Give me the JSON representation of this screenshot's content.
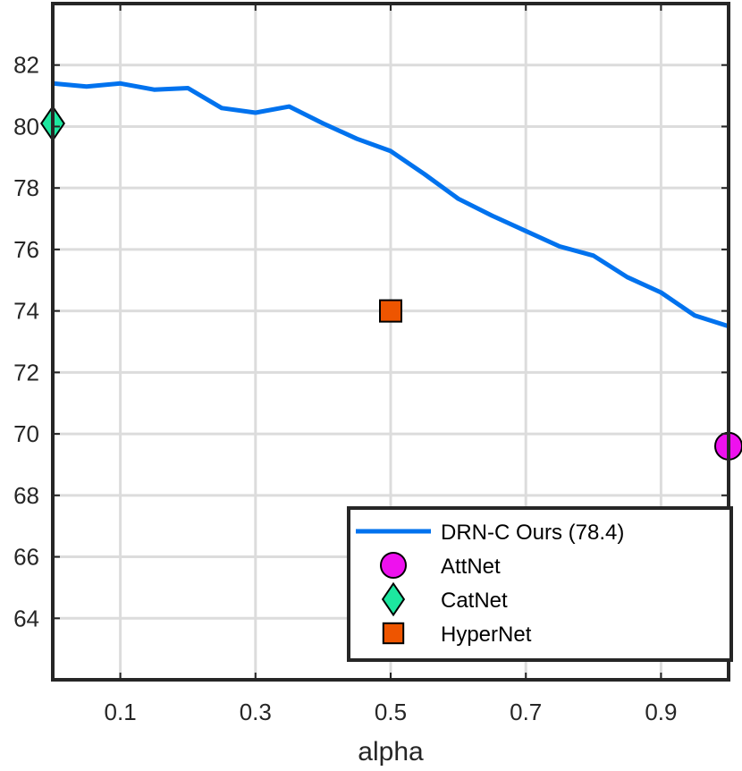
{
  "chart_data": {
    "type": "line",
    "title": "",
    "xlabel": "alpha",
    "ylabel": "",
    "xlim": [
      0,
      1
    ],
    "ylim": [
      62,
      84
    ],
    "xticks": [
      0.1,
      0.3,
      0.5,
      0.7,
      0.9
    ],
    "xtick_labels": [
      "0.1",
      "0.3",
      "0.5",
      "0.7",
      "0.9"
    ],
    "yticks": [
      64,
      66,
      68,
      70,
      72,
      74,
      76,
      78,
      80,
      82
    ],
    "ytick_labels": [
      "64",
      "66",
      "68",
      "70",
      "72",
      "74",
      "76",
      "78",
      "80",
      "82"
    ],
    "grid": true,
    "legend_position": "bottom-right",
    "series": [
      {
        "name": "DRN-C Ours (78.4)",
        "kind": "line",
        "color": "#0072ee",
        "x": [
          0,
          0.05,
          0.1,
          0.15,
          0.2,
          0.25,
          0.3,
          0.35,
          0.4,
          0.45,
          0.5,
          0.55,
          0.6,
          0.65,
          0.7,
          0.75,
          0.8,
          0.85,
          0.9,
          0.95,
          1.0
        ],
        "y": [
          81.4,
          81.3,
          81.4,
          81.2,
          81.25,
          80.6,
          80.45,
          80.65,
          80.1,
          79.6,
          79.2,
          78.45,
          77.65,
          77.1,
          76.6,
          76.1,
          75.8,
          75.1,
          74.6,
          73.85,
          73.5
        ]
      },
      {
        "name": "AttNet",
        "kind": "marker",
        "marker": "circle",
        "color": "#ee11ee",
        "x": [
          1.0
        ],
        "y": [
          69.6
        ]
      },
      {
        "name": "CatNet",
        "kind": "marker",
        "marker": "diamond",
        "color": "#1de79f",
        "x": [
          0.0
        ],
        "y": [
          80.1
        ]
      },
      {
        "name": "HyperNet",
        "kind": "marker",
        "marker": "square",
        "color": "#ee5500",
        "x": [
          0.5
        ],
        "y": [
          74.0
        ]
      }
    ]
  }
}
